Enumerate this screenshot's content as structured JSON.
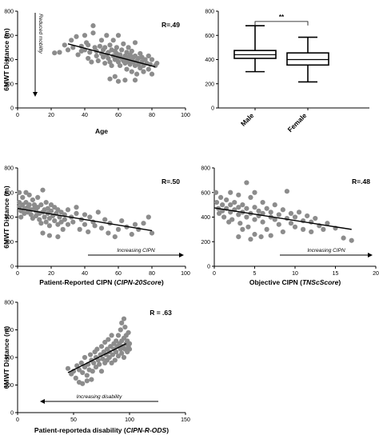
{
  "chart_data": [
    {
      "id": "age",
      "type": "scatter",
      "xlabel": "Age",
      "ylabel": "6MWT Distance (m)",
      "xlim": [
        0,
        100
      ],
      "ylim": [
        0,
        800
      ],
      "xticks": [
        0,
        20,
        40,
        60,
        80,
        100
      ],
      "yticks": [
        0,
        200,
        400,
        600,
        800
      ],
      "annotation": "R=.49",
      "arrow_label": "Reduced mobility",
      "arrow_direction": "down",
      "line": [
        [
          30,
          530
        ],
        [
          82,
          340
        ]
      ],
      "points": [
        [
          22,
          455
        ],
        [
          25,
          460
        ],
        [
          28,
          520
        ],
        [
          30,
          480
        ],
        [
          32,
          560
        ],
        [
          33,
          500
        ],
        [
          35,
          590
        ],
        [
          36,
          440
        ],
        [
          38,
          510
        ],
        [
          38,
          470
        ],
        [
          40,
          480
        ],
        [
          40,
          600
        ],
        [
          41,
          540
        ],
        [
          42,
          520
        ],
        [
          42,
          410
        ],
        [
          43,
          460
        ],
        [
          44,
          380
        ],
        [
          45,
          620
        ],
        [
          45,
          680
        ],
        [
          46,
          500
        ],
        [
          47,
          470
        ],
        [
          47,
          430
        ],
        [
          48,
          390
        ],
        [
          49,
          510
        ],
        [
          50,
          560
        ],
        [
          50,
          450
        ],
        [
          51,
          420
        ],
        [
          51,
          480
        ],
        [
          52,
          500
        ],
        [
          52,
          370
        ],
        [
          53,
          440
        ],
        [
          53,
          600
        ],
        [
          54,
          460
        ],
        [
          54,
          410
        ],
        [
          55,
          520
        ],
        [
          55,
          380
        ],
        [
          56,
          350
        ],
        [
          56,
          480
        ],
        [
          57,
          430
        ],
        [
          57,
          560
        ],
        [
          58,
          400
        ],
        [
          58,
          470
        ],
        [
          58,
          260
        ],
        [
          59,
          450
        ],
        [
          59,
          500
        ],
        [
          60,
          420
        ],
        [
          60,
          380
        ],
        [
          60,
          600
        ],
        [
          61,
          440
        ],
        [
          61,
          350
        ],
        [
          62,
          410
        ],
        [
          62,
          480
        ],
        [
          63,
          390
        ],
        [
          63,
          530
        ],
        [
          64,
          430
        ],
        [
          64,
          370
        ],
        [
          64,
          230
        ],
        [
          65,
          460
        ],
        [
          65,
          400
        ],
        [
          65,
          320
        ],
        [
          66,
          420
        ],
        [
          66,
          380
        ],
        [
          66,
          500
        ],
        [
          67,
          360
        ],
        [
          67,
          440
        ],
        [
          68,
          400
        ],
        [
          68,
          300
        ],
        [
          68,
          470
        ],
        [
          69,
          380
        ],
        [
          69,
          420
        ],
        [
          70,
          350
        ],
        [
          70,
          430
        ],
        [
          70,
          540
        ],
        [
          71,
          390
        ],
        [
          71,
          280
        ],
        [
          72,
          410
        ],
        [
          72,
          360
        ],
        [
          73,
          450
        ],
        [
          73,
          330
        ],
        [
          74,
          380
        ],
        [
          74,
          420
        ],
        [
          75,
          350
        ],
        [
          75,
          300
        ],
        [
          76,
          400
        ],
        [
          77,
          370
        ],
        [
          78,
          430
        ],
        [
          78,
          320
        ],
        [
          79,
          360
        ],
        [
          80,
          400
        ],
        [
          80,
          280
        ],
        [
          82,
          350
        ],
        [
          83,
          370
        ],
        [
          70,
          230
        ],
        [
          60,
          220
        ],
        [
          55,
          240
        ]
      ]
    },
    {
      "id": "sex",
      "type": "box",
      "categories": [
        "Male",
        "Female"
      ],
      "ylim": [
        0,
        800
      ],
      "yticks": [
        0,
        200,
        400,
        600,
        800
      ],
      "boxes": [
        {
          "min": 300,
          "q1": 410,
          "median": 440,
          "q3": 475,
          "max": 680
        },
        {
          "min": 215,
          "q1": 355,
          "median": 400,
          "q3": 455,
          "max": 585
        }
      ],
      "significance": "**"
    },
    {
      "id": "cipn20",
      "type": "scatter",
      "xlabel": "Patient-Reported CIPN (",
      "xlabel_italic": "CIPN-20Score",
      "xlabel_end": ")",
      "ylabel": "6MWT Distance (m)",
      "xlim": [
        0,
        100
      ],
      "ylim": [
        0,
        800
      ],
      "xticks": [
        0,
        20,
        40,
        60,
        80,
        100
      ],
      "yticks": [
        0,
        200,
        400,
        600,
        800
      ],
      "annotation": "R=.50",
      "arrow_label": "Increasing CIPN",
      "arrow_direction": "right",
      "line": [
        [
          0,
          470
        ],
        [
          80,
          290
        ]
      ],
      "points": [
        [
          1,
          600
        ],
        [
          1,
          520
        ],
        [
          1,
          480
        ],
        [
          2,
          450
        ],
        [
          2,
          400
        ],
        [
          3,
          560
        ],
        [
          3,
          500
        ],
        [
          4,
          470
        ],
        [
          4,
          430
        ],
        [
          5,
          600
        ],
        [
          5,
          520
        ],
        [
          6,
          480
        ],
        [
          6,
          440
        ],
        [
          7,
          580
        ],
        [
          7,
          500
        ],
        [
          8,
          460
        ],
        [
          8,
          420
        ],
        [
          9,
          540
        ],
        [
          9,
          390
        ],
        [
          10,
          470
        ],
        [
          10,
          500
        ],
        [
          11,
          450
        ],
        [
          11,
          410
        ],
        [
          12,
          560
        ],
        [
          12,
          480
        ],
        [
          13,
          430
        ],
        [
          13,
          380
        ],
        [
          14,
          500
        ],
        [
          14,
          350
        ],
        [
          15,
          440
        ],
        [
          15,
          620
        ],
        [
          16,
          460
        ],
        [
          16,
          400
        ],
        [
          17,
          520
        ],
        [
          17,
          360
        ],
        [
          18,
          430
        ],
        [
          18,
          470
        ],
        [
          19,
          390
        ],
        [
          19,
          330
        ],
        [
          20,
          450
        ],
        [
          20,
          500
        ],
        [
          21,
          410
        ],
        [
          22,
          370
        ],
        [
          22,
          480
        ],
        [
          23,
          430
        ],
        [
          24,
          340
        ],
        [
          24,
          460
        ],
        [
          25,
          400
        ],
        [
          26,
          360
        ],
        [
          26,
          440
        ],
        [
          27,
          300
        ],
        [
          28,
          420
        ],
        [
          28,
          380
        ],
        [
          30,
          460
        ],
        [
          30,
          340
        ],
        [
          32,
          400
        ],
        [
          33,
          360
        ],
        [
          35,
          480
        ],
        [
          35,
          430
        ],
        [
          37,
          300
        ],
        [
          38,
          380
        ],
        [
          40,
          420
        ],
        [
          40,
          340
        ],
        [
          42,
          280
        ],
        [
          43,
          400
        ],
        [
          45,
          360
        ],
        [
          46,
          330
        ],
        [
          48,
          440
        ],
        [
          50,
          310
        ],
        [
          52,
          380
        ],
        [
          54,
          270
        ],
        [
          55,
          350
        ],
        [
          58,
          240
        ],
        [
          60,
          300
        ],
        [
          62,
          370
        ],
        [
          65,
          320
        ],
        [
          68,
          260
        ],
        [
          70,
          340
        ],
        [
          72,
          300
        ],
        [
          75,
          350
        ],
        [
          78,
          400
        ],
        [
          80,
          270
        ],
        [
          24,
          240
        ],
        [
          15,
          270
        ],
        [
          19,
          250
        ]
      ]
    },
    {
      "id": "tnsc",
      "type": "scatter",
      "xlabel": "Objective CIPN (",
      "xlabel_italic": "TNScScore",
      "xlabel_end": ")",
      "ylabel": "",
      "xlim": [
        0,
        20
      ],
      "ylim": [
        0,
        800
      ],
      "xticks": [
        0,
        5,
        10,
        15,
        20
      ],
      "yticks": [
        0,
        200,
        400,
        600,
        800
      ],
      "annotation": "R=.48",
      "arrow_label": "Increasing CIPN",
      "arrow_direction": "right",
      "line": [
        [
          0,
          475
        ],
        [
          17,
          300
        ]
      ],
      "points": [
        [
          0.2,
          600
        ],
        [
          0.3,
          520
        ],
        [
          0.5,
          470
        ],
        [
          0.6,
          430
        ],
        [
          0.8,
          560
        ],
        [
          1,
          500
        ],
        [
          1,
          450
        ],
        [
          1.2,
          400
        ],
        [
          1.5,
          540
        ],
        [
          1.5,
          470
        ],
        [
          2,
          600
        ],
        [
          2,
          440
        ],
        [
          2,
          500
        ],
        [
          2.2,
          380
        ],
        [
          2.5,
          520
        ],
        [
          2.5,
          460
        ],
        [
          3,
          580
        ],
        [
          3,
          420
        ],
        [
          3,
          480
        ],
        [
          3.2,
          350
        ],
        [
          3.5,
          500
        ],
        [
          3.5,
          440
        ],
        [
          4,
          680
        ],
        [
          4,
          470
        ],
        [
          4,
          400
        ],
        [
          4.2,
          320
        ],
        [
          4.5,
          560
        ],
        [
          4.5,
          430
        ],
        [
          5,
          600
        ],
        [
          5,
          480
        ],
        [
          5,
          380
        ],
        [
          5,
          260
        ],
        [
          5.5,
          450
        ],
        [
          5.5,
          410
        ],
        [
          6,
          520
        ],
        [
          6,
          360
        ],
        [
          6,
          430
        ],
        [
          6.5,
          470
        ],
        [
          6.5,
          300
        ],
        [
          7,
          400
        ],
        [
          7,
          440
        ],
        [
          7,
          250
        ],
        [
          7.5,
          380
        ],
        [
          7.5,
          500
        ],
        [
          8,
          420
        ],
        [
          8,
          340
        ],
        [
          8.5,
          460
        ],
        [
          8.5,
          280
        ],
        [
          9,
          390
        ],
        [
          9,
          610
        ],
        [
          9.5,
          430
        ],
        [
          9.5,
          350
        ],
        [
          10,
          400
        ],
        [
          10,
          320
        ],
        [
          10.5,
          440
        ],
        [
          11,
          370
        ],
        [
          11,
          300
        ],
        [
          11.5,
          410
        ],
        [
          12,
          360
        ],
        [
          12,
          280
        ],
        [
          12.5,
          390
        ],
        [
          13,
          330
        ],
        [
          13.5,
          300
        ],
        [
          14,
          350
        ],
        [
          15,
          310
        ],
        [
          16,
          230
        ],
        [
          17,
          210
        ],
        [
          3,
          240
        ],
        [
          4.5,
          220
        ],
        [
          5.8,
          240
        ],
        [
          3.5,
          300
        ],
        [
          1.8,
          360
        ]
      ]
    },
    {
      "id": "cipnrods",
      "type": "scatter",
      "xlabel": "Patient-reporteda disability (",
      "xlabel_italic": "CIPN-R-ODS",
      "xlabel_end": ")",
      "ylabel": "6MWT Distance (m)",
      "xlim": [
        0,
        150
      ],
      "ylim": [
        0,
        800
      ],
      "xticks": [
        0,
        50,
        100,
        150
      ],
      "yticks": [
        0,
        200,
        400,
        600,
        800
      ],
      "annotation": "R = .63",
      "arrow_label": "Increasing disability",
      "arrow_direction": "left",
      "line": [
        [
          45,
          290
        ],
        [
          97,
          500
        ]
      ],
      "points": [
        [
          45,
          320
        ],
        [
          48,
          280
        ],
        [
          50,
          300
        ],
        [
          52,
          250
        ],
        [
          53,
          340
        ],
        [
          55,
          310
        ],
        [
          55,
          220
        ],
        [
          57,
          360
        ],
        [
          58,
          290
        ],
        [
          60,
          330
        ],
        [
          60,
          400
        ],
        [
          62,
          270
        ],
        [
          63,
          350
        ],
        [
          64,
          310
        ],
        [
          65,
          420
        ],
        [
          66,
          380
        ],
        [
          67,
          300
        ],
        [
          68,
          360
        ],
        [
          69,
          440
        ],
        [
          70,
          330
        ],
        [
          70,
          400
        ],
        [
          71,
          460
        ],
        [
          72,
          380
        ],
        [
          73,
          350
        ],
        [
          74,
          420
        ],
        [
          75,
          480
        ],
        [
          75,
          300
        ],
        [
          76,
          390
        ],
        [
          77,
          440
        ],
        [
          78,
          510
        ],
        [
          78,
          360
        ],
        [
          79,
          420
        ],
        [
          80,
          460
        ],
        [
          80,
          380
        ],
        [
          81,
          530
        ],
        [
          82,
          440
        ],
        [
          82,
          400
        ],
        [
          83,
          480
        ],
        [
          84,
          360
        ],
        [
          84,
          560
        ],
        [
          85,
          420
        ],
        [
          86,
          500
        ],
        [
          86,
          460
        ],
        [
          87,
          380
        ],
        [
          88,
          520
        ],
        [
          88,
          440
        ],
        [
          89,
          480
        ],
        [
          90,
          560
        ],
        [
          90,
          410
        ],
        [
          91,
          500
        ],
        [
          92,
          460
        ],
        [
          92,
          600
        ],
        [
          93,
          430
        ],
        [
          93,
          520
        ],
        [
          94,
          480
        ],
        [
          95,
          540
        ],
        [
          95,
          400
        ],
        [
          96,
          460
        ],
        [
          96,
          620
        ],
        [
          97,
          500
        ],
        [
          97,
          560
        ],
        [
          98,
          440
        ],
        [
          98,
          520
        ],
        [
          99,
          480
        ],
        [
          99,
          580
        ],
        [
          100,
          500
        ],
        [
          100,
          460
        ],
        [
          95,
          680
        ],
        [
          93,
          650
        ],
        [
          62,
          230
        ],
        [
          58,
          210
        ],
        [
          66,
          240
        ]
      ]
    }
  ]
}
